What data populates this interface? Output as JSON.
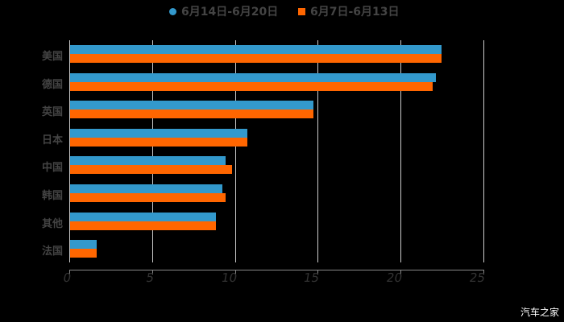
{
  "chart_data": {
    "type": "bar",
    "orientation": "horizontal",
    "title": "",
    "xlabel": "",
    "ylabel": "",
    "categories": [
      "美国",
      "德国",
      "英国",
      "日本",
      "中国",
      "韩国",
      "其他",
      "法国"
    ],
    "series": [
      {
        "name": "6月14日-6月20日",
        "color": "#3399cc",
        "values": [
          22.4,
          22.1,
          14.7,
          10.7,
          9.4,
          9.2,
          8.8,
          1.6
        ]
      },
      {
        "name": "6月7日-6月13日",
        "color": "#ff6600",
        "values": [
          22.4,
          21.9,
          14.7,
          10.7,
          9.8,
          9.4,
          8.8,
          1.6
        ]
      }
    ],
    "xlim": [
      0,
      25
    ],
    "xticks": [
      "0",
      "5",
      "10",
      "15",
      "20",
      "25"
    ],
    "grid": true,
    "legend_position": "top"
  },
  "legend": {
    "items": [
      {
        "label": "6月14日-6月20日",
        "color": "#3399cc",
        "shape": "circle"
      },
      {
        "label": "6月7日-6月13日",
        "color": "#ff6600",
        "shape": "square"
      }
    ]
  },
  "watermark": "汽车之家"
}
